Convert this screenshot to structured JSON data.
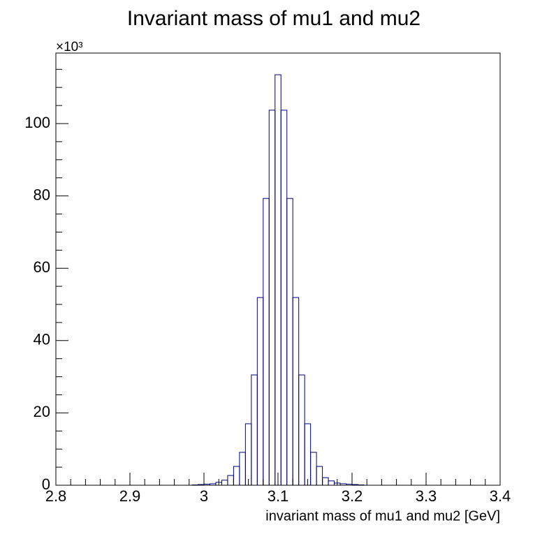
{
  "chart_data": {
    "type": "histogram",
    "title": "Invariant mass of mu1 and mu2",
    "x_label": "invariant mass of mu1 and mu2 [GeV]",
    "y_scale_label": "×10³",
    "color": "#000080",
    "bins": [
      2.8,
      2.808,
      2.816,
      2.824,
      2.832,
      2.84,
      2.848,
      2.856,
      2.864,
      2.872,
      2.88,
      2.888,
      2.896,
      2.904,
      2.912,
      2.92,
      2.928,
      2.936,
      2.944,
      2.952,
      2.96,
      2.968,
      2.976,
      2.984,
      2.992,
      3.0,
      3.008,
      3.016,
      3.024,
      3.032,
      3.04,
      3.048,
      3.056,
      3.064,
      3.072,
      3.08,
      3.088,
      3.096,
      3.104,
      3.112,
      3.12,
      3.128,
      3.136,
      3.144,
      3.152,
      3.16,
      3.168,
      3.176,
      3.184,
      3.192,
      3.2,
      3.208,
      3.216,
      3.224,
      3.232,
      3.24,
      3.248,
      3.256,
      3.264,
      3.272,
      3.28,
      3.288,
      3.296,
      3.304,
      3.312,
      3.32,
      3.328,
      3.336,
      3.344,
      3.352,
      3.36,
      3.368,
      3.376,
      3.384,
      3.392,
      3.4
    ],
    "values": [
      0,
      0,
      0,
      0,
      0,
      0,
      0,
      0,
      0,
      0,
      0,
      0,
      0,
      0,
      0,
      0,
      0,
      0,
      0,
      0,
      0,
      0,
      0,
      0.1,
      0.2,
      0.3,
      0.4,
      0.8,
      1.4,
      2.7,
      5.2,
      9.1,
      17.0,
      30.5,
      51.9,
      79.3,
      103.7,
      113.5,
      103.7,
      79.3,
      51.9,
      30.5,
      17.0,
      9.1,
      5.2,
      2.1,
      1.2,
      0.6,
      0.4,
      0.3,
      0.2,
      0.1,
      0,
      0,
      0,
      0,
      0,
      0,
      0,
      0,
      0,
      0,
      0,
      0,
      0,
      0,
      0,
      0,
      0,
      0,
      0,
      0,
      0,
      0,
      0
    ],
    "xlim": [
      2.8,
      3.4
    ],
    "xticks": [
      2.8,
      2.9,
      3,
      3.1,
      3.2,
      3.3,
      3.4
    ],
    "xminorticks": [
      2.82,
      2.84,
      2.86,
      2.88,
      2.92,
      2.94,
      2.96,
      2.98,
      3.02,
      3.04,
      3.06,
      3.08,
      3.12,
      3.14,
      3.16,
      3.18,
      3.22,
      3.24,
      3.26,
      3.28,
      3.32,
      3.34,
      3.36,
      3.38
    ],
    "ylim": [
      0,
      119.5
    ],
    "yticks": [
      0,
      20,
      40,
      60,
      80,
      100
    ],
    "yminorticks": [
      5,
      10,
      15,
      25,
      30,
      35,
      45,
      50,
      55,
      65,
      70,
      75,
      85,
      90,
      95,
      105,
      110,
      115
    ]
  }
}
